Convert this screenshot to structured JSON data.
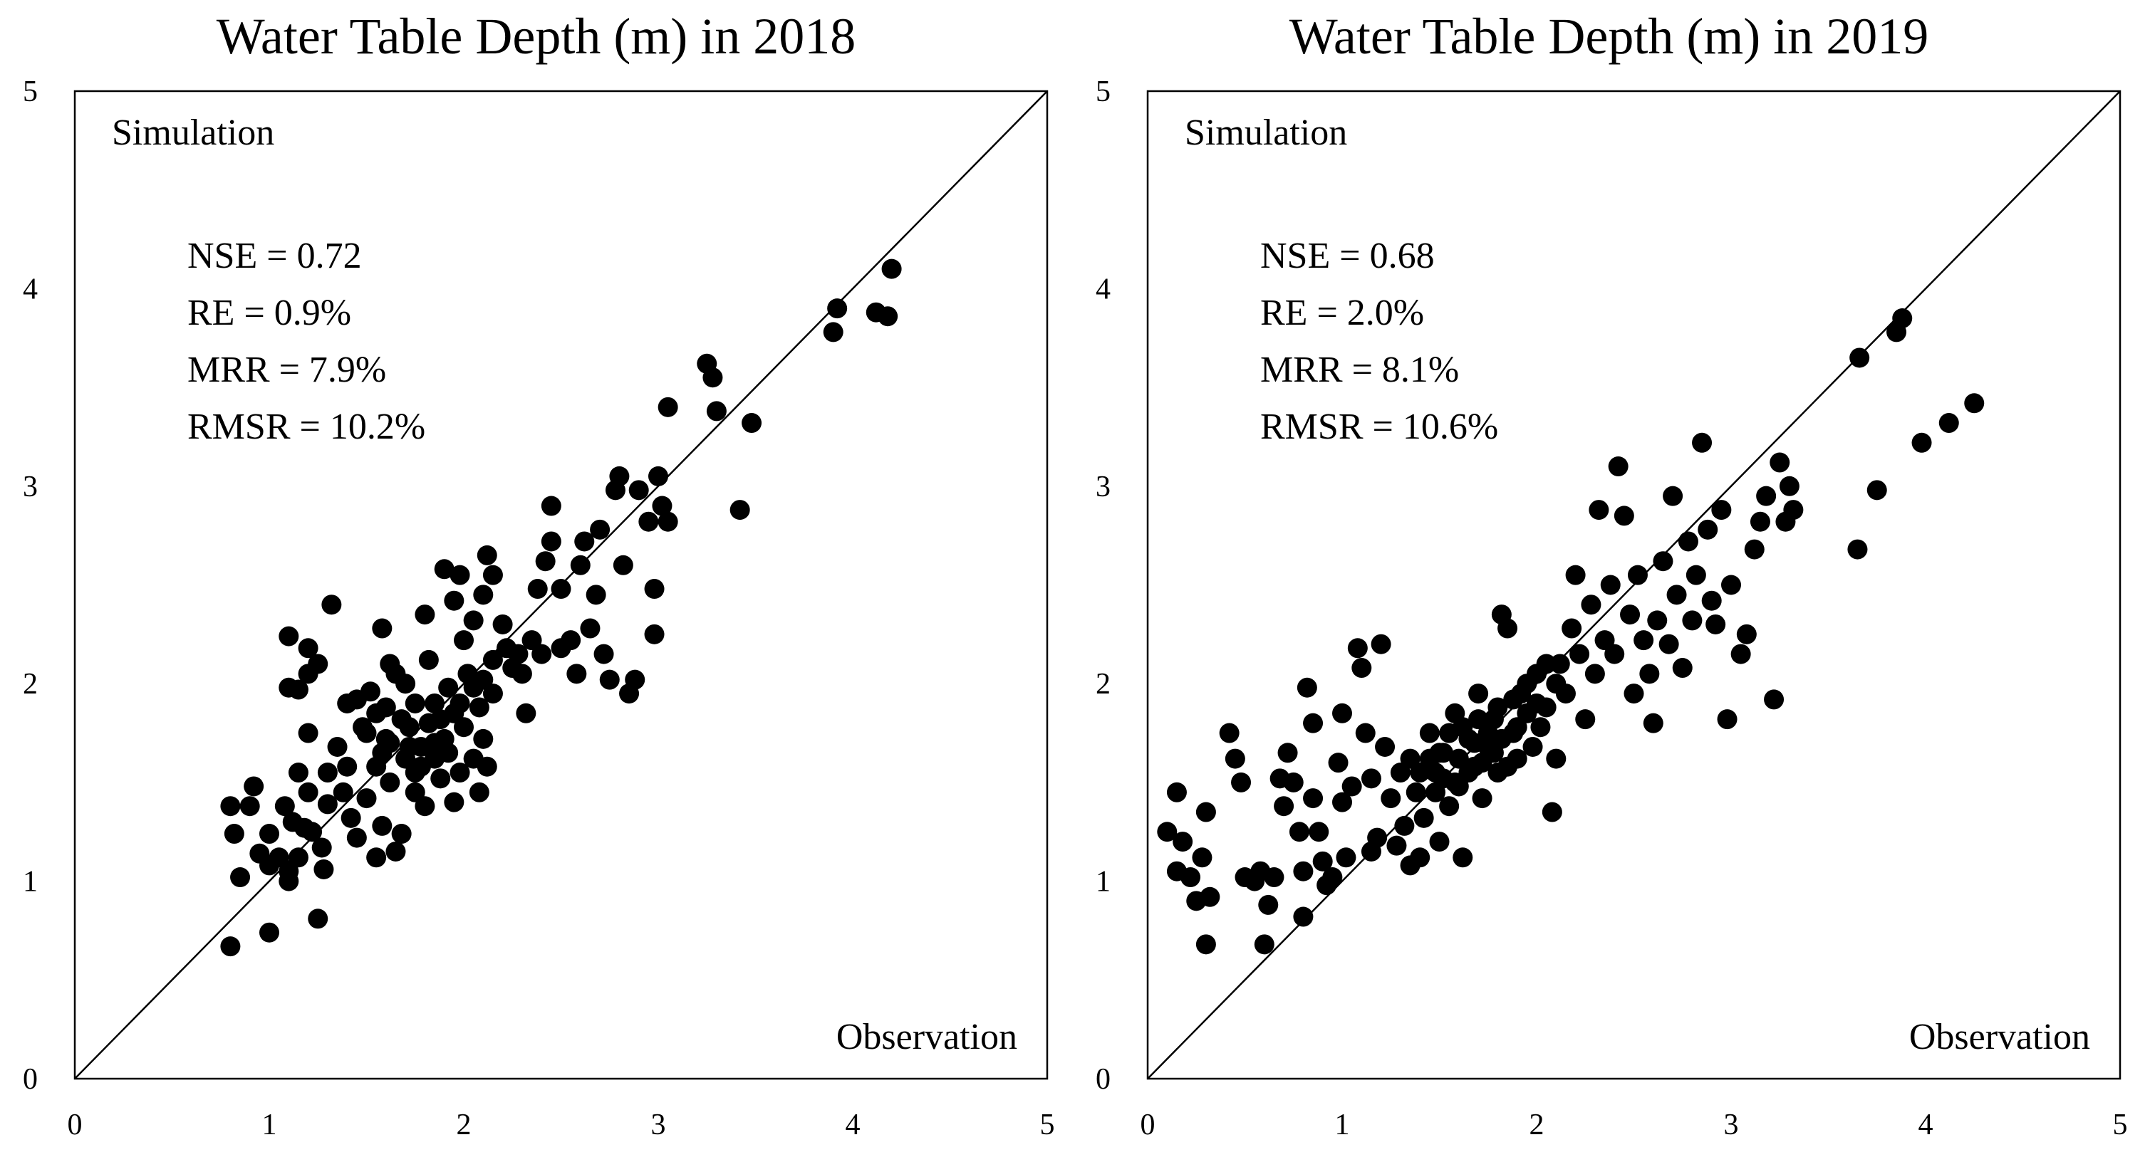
{
  "chart_data": [
    {
      "type": "scatter",
      "title": "Water Table Depth (m) in 2018",
      "xlabel": "Observation",
      "ylabel": "Simulation",
      "xlim": [
        0,
        5
      ],
      "ylim": [
        0,
        5
      ],
      "xticks": [
        "0",
        "1",
        "2",
        "3",
        "4",
        "5"
      ],
      "yticks": [
        "0",
        "1",
        "2",
        "3",
        "4",
        "5"
      ],
      "reference_line": "1:1",
      "stats": [
        "NSE = 0.72",
        "RE = 0.9%",
        "MRR = 7.9%",
        "RMSR = 10.2%"
      ],
      "points": [
        [
          0.8,
          0.67
        ],
        [
          1.0,
          0.74
        ],
        [
          1.25,
          0.81
        ],
        [
          0.8,
          1.38
        ],
        [
          0.82,
          1.24
        ],
        [
          0.85,
          1.02
        ],
        [
          0.9,
          1.38
        ],
        [
          0.92,
          1.48
        ],
        [
          0.95,
          1.14
        ],
        [
          1.0,
          1.24
        ],
        [
          1.0,
          1.08
        ],
        [
          1.05,
          1.12
        ],
        [
          1.08,
          1.38
        ],
        [
          1.1,
          1.0
        ],
        [
          1.1,
          1.05
        ],
        [
          1.12,
          1.3
        ],
        [
          1.15,
          1.12
        ],
        [
          1.15,
          1.55
        ],
        [
          1.18,
          1.27
        ],
        [
          1.2,
          1.45
        ],
        [
          1.2,
          1.75
        ],
        [
          1.22,
          1.25
        ],
        [
          1.27,
          1.17
        ],
        [
          1.28,
          1.06
        ],
        [
          1.3,
          1.39
        ],
        [
          1.3,
          1.55
        ],
        [
          1.1,
          1.98
        ],
        [
          1.15,
          1.97
        ],
        [
          1.2,
          2.05
        ],
        [
          1.1,
          2.24
        ],
        [
          1.2,
          2.18
        ],
        [
          1.25,
          2.1
        ],
        [
          1.32,
          2.4
        ],
        [
          1.35,
          1.68
        ],
        [
          1.38,
          1.45
        ],
        [
          1.4,
          1.58
        ],
        [
          1.42,
          1.32
        ],
        [
          1.45,
          1.22
        ],
        [
          1.45,
          1.92
        ],
        [
          1.48,
          1.78
        ],
        [
          1.5,
          1.42
        ],
        [
          1.52,
          1.96
        ],
        [
          1.55,
          1.12
        ],
        [
          1.55,
          1.58
        ],
        [
          1.58,
          1.28
        ],
        [
          1.6,
          1.72
        ],
        [
          1.6,
          1.88
        ],
        [
          1.62,
          1.5
        ],
        [
          1.65,
          1.15
        ],
        [
          1.65,
          2.05
        ],
        [
          1.68,
          1.24
        ],
        [
          1.7,
          1.62
        ],
        [
          1.72,
          1.78
        ],
        [
          1.75,
          1.45
        ],
        [
          1.75,
          1.55
        ],
        [
          1.78,
          1.68
        ],
        [
          1.8,
          1.38
        ],
        [
          1.82,
          1.8
        ],
        [
          1.85,
          1.9
        ],
        [
          1.85,
          1.62
        ],
        [
          1.88,
          1.52
        ],
        [
          1.9,
          1.72
        ],
        [
          1.92,
          1.98
        ],
        [
          1.95,
          1.4
        ],
        [
          1.95,
          1.85
        ],
        [
          1.98,
          1.55
        ],
        [
          2.0,
          1.78
        ],
        [
          2.02,
          2.05
        ],
        [
          2.05,
          1.62
        ],
        [
          2.08,
          1.45
        ],
        [
          2.1,
          1.72
        ],
        [
          2.12,
          1.58
        ],
        [
          2.15,
          1.95
        ],
        [
          2.15,
          2.12
        ],
        [
          1.58,
          2.28
        ],
        [
          1.62,
          2.1
        ],
        [
          1.7,
          2.0
        ],
        [
          1.8,
          2.35
        ],
        [
          1.82,
          2.12
        ],
        [
          1.9,
          2.58
        ],
        [
          1.95,
          2.42
        ],
        [
          1.98,
          2.55
        ],
        [
          2.0,
          2.22
        ],
        [
          2.05,
          2.32
        ],
        [
          2.1,
          2.45
        ],
        [
          2.12,
          2.65
        ],
        [
          2.15,
          2.55
        ],
        [
          2.2,
          2.3
        ],
        [
          2.22,
          2.18
        ],
        [
          2.25,
          2.08
        ],
        [
          2.28,
          2.15
        ],
        [
          2.3,
          2.05
        ],
        [
          2.32,
          1.85
        ],
        [
          2.35,
          2.22
        ],
        [
          2.38,
          2.48
        ],
        [
          2.4,
          2.15
        ],
        [
          2.42,
          2.62
        ],
        [
          2.45,
          2.72
        ],
        [
          2.45,
          2.9
        ],
        [
          2.5,
          2.18
        ],
        [
          2.5,
          2.48
        ],
        [
          2.55,
          2.22
        ],
        [
          2.58,
          2.05
        ],
        [
          2.6,
          2.6
        ],
        [
          2.62,
          2.72
        ],
        [
          2.65,
          2.28
        ],
        [
          2.68,
          2.45
        ],
        [
          2.7,
          2.78
        ],
        [
          2.72,
          2.15
        ],
        [
          2.75,
          2.02
        ],
        [
          2.78,
          2.98
        ],
        [
          2.8,
          3.05
        ],
        [
          2.82,
          2.6
        ],
        [
          2.85,
          1.95
        ],
        [
          2.88,
          2.02
        ],
        [
          2.9,
          2.98
        ],
        [
          2.95,
          2.82
        ],
        [
          2.98,
          2.25
        ],
        [
          2.98,
          2.48
        ],
        [
          3.0,
          3.05
        ],
        [
          3.02,
          2.9
        ],
        [
          3.05,
          2.82
        ],
        [
          3.05,
          3.4
        ],
        [
          3.25,
          3.62
        ],
        [
          3.28,
          3.55
        ],
        [
          3.3,
          3.38
        ],
        [
          3.42,
          2.88
        ],
        [
          3.48,
          3.32
        ],
        [
          3.9,
          3.78
        ],
        [
          3.92,
          3.9
        ],
        [
          4.12,
          3.88
        ],
        [
          4.18,
          3.86
        ],
        [
          4.2,
          4.1
        ],
        [
          1.4,
          1.9
        ],
        [
          1.5,
          1.75
        ],
        [
          1.55,
          1.85
        ],
        [
          1.58,
          1.65
        ],
        [
          1.62,
          1.7
        ],
        [
          1.68,
          1.82
        ],
        [
          1.72,
          1.68
        ],
        [
          1.75,
          1.9
        ],
        [
          1.78,
          1.58
        ],
        [
          1.85,
          1.7
        ],
        [
          1.88,
          1.82
        ],
        [
          1.92,
          1.65
        ],
        [
          1.98,
          1.9
        ],
        [
          2.05,
          1.98
        ],
        [
          2.08,
          1.88
        ],
        [
          2.1,
          2.02
        ]
      ]
    },
    {
      "type": "scatter",
      "title": "Water Table Depth (m) in 2019",
      "xlabel": "Observation",
      "ylabel": "Simulation",
      "xlim": [
        0,
        5
      ],
      "ylim": [
        0,
        5
      ],
      "xticks": [
        "0",
        "1",
        "2",
        "3",
        "4",
        "5"
      ],
      "yticks": [
        "0",
        "1",
        "2",
        "3",
        "4",
        "5"
      ],
      "reference_line": "1:1",
      "stats": [
        "NSE = 0.68",
        "RE = 2.0%",
        "MRR = 8.1%",
        "RMSR = 10.6%"
      ],
      "points": [
        [
          0.1,
          1.25
        ],
        [
          0.15,
          1.45
        ],
        [
          0.15,
          1.05
        ],
        [
          0.18,
          1.2
        ],
        [
          0.22,
          1.02
        ],
        [
          0.25,
          0.9
        ],
        [
          0.28,
          1.12
        ],
        [
          0.3,
          0.68
        ],
        [
          0.3,
          1.35
        ],
        [
          0.32,
          0.92
        ],
        [
          0.42,
          1.75
        ],
        [
          0.45,
          1.62
        ],
        [
          0.48,
          1.5
        ],
        [
          0.5,
          1.02
        ],
        [
          0.55,
          1.0
        ],
        [
          0.58,
          1.05
        ],
        [
          0.6,
          0.68
        ],
        [
          0.62,
          0.88
        ],
        [
          0.65,
          1.02
        ],
        [
          0.68,
          1.52
        ],
        [
          0.7,
          1.38
        ],
        [
          0.72,
          1.65
        ],
        [
          0.75,
          1.5
        ],
        [
          0.78,
          1.25
        ],
        [
          0.8,
          0.82
        ],
        [
          0.8,
          1.05
        ],
        [
          0.82,
          1.98
        ],
        [
          0.85,
          1.8
        ],
        [
          0.85,
          1.42
        ],
        [
          0.88,
          1.25
        ],
        [
          0.9,
          1.1
        ],
        [
          0.92,
          0.98
        ],
        [
          0.95,
          1.02
        ],
        [
          0.98,
          1.6
        ],
        [
          1.0,
          1.4
        ],
        [
          1.0,
          1.85
        ],
        [
          1.02,
          1.12
        ],
        [
          1.05,
          1.48
        ],
        [
          1.08,
          2.18
        ],
        [
          1.1,
          2.08
        ],
        [
          1.12,
          1.75
        ],
        [
          1.15,
          1.52
        ],
        [
          1.18,
          1.22
        ],
        [
          1.2,
          2.2
        ],
        [
          1.22,
          1.68
        ],
        [
          1.25,
          1.42
        ],
        [
          1.28,
          1.18
        ],
        [
          1.3,
          1.55
        ],
        [
          1.32,
          1.28
        ],
        [
          1.35,
          1.62
        ],
        [
          1.38,
          1.45
        ],
        [
          1.4,
          1.12
        ],
        [
          1.42,
          1.32
        ],
        [
          1.45,
          1.75
        ],
        [
          1.48,
          1.55
        ],
        [
          1.5,
          1.2
        ],
        [
          1.52,
          1.65
        ],
        [
          1.55,
          1.38
        ],
        [
          1.58,
          1.85
        ],
        [
          1.6,
          1.48
        ],
        [
          1.62,
          1.12
        ],
        [
          1.65,
          1.72
        ],
        [
          1.68,
          1.58
        ],
        [
          1.7,
          1.95
        ],
        [
          1.72,
          1.42
        ],
        [
          1.75,
          1.68
        ],
        [
          1.78,
          1.82
        ],
        [
          1.8,
          1.55
        ],
        [
          1.82,
          2.35
        ],
        [
          1.85,
          2.28
        ],
        [
          1.88,
          1.75
        ],
        [
          1.9,
          1.62
        ],
        [
          1.92,
          1.95
        ],
        [
          1.95,
          1.85
        ],
        [
          1.98,
          1.68
        ],
        [
          2.0,
          2.05
        ],
        [
          2.02,
          1.78
        ],
        [
          2.05,
          1.88
        ],
        [
          2.08,
          1.35
        ],
        [
          2.1,
          1.62
        ],
        [
          2.12,
          2.1
        ],
        [
          2.15,
          1.95
        ],
        [
          2.18,
          2.28
        ],
        [
          2.2,
          2.55
        ],
        [
          2.22,
          2.15
        ],
        [
          2.25,
          1.82
        ],
        [
          2.28,
          2.4
        ],
        [
          2.3,
          2.05
        ],
        [
          2.32,
          2.88
        ],
        [
          2.35,
          2.22
        ],
        [
          2.38,
          2.5
        ],
        [
          2.4,
          2.15
        ],
        [
          2.42,
          3.1
        ],
        [
          2.45,
          2.85
        ],
        [
          2.48,
          2.35
        ],
        [
          2.5,
          1.95
        ],
        [
          2.52,
          2.55
        ],
        [
          2.55,
          2.22
        ],
        [
          2.58,
          2.05
        ],
        [
          2.6,
          1.8
        ],
        [
          2.62,
          2.32
        ],
        [
          2.65,
          2.62
        ],
        [
          2.68,
          2.2
        ],
        [
          2.7,
          2.95
        ],
        [
          2.72,
          2.45
        ],
        [
          2.75,
          2.08
        ],
        [
          2.78,
          2.72
        ],
        [
          2.8,
          2.32
        ],
        [
          2.82,
          2.55
        ],
        [
          2.85,
          3.22
        ],
        [
          2.88,
          2.78
        ],
        [
          2.9,
          2.42
        ],
        [
          2.92,
          2.3
        ],
        [
          2.95,
          2.88
        ],
        [
          2.98,
          1.82
        ],
        [
          3.0,
          2.5
        ],
        [
          3.05,
          2.15
        ],
        [
          3.08,
          2.25
        ],
        [
          3.12,
          2.68
        ],
        [
          3.15,
          2.82
        ],
        [
          3.18,
          2.95
        ],
        [
          3.22,
          1.92
        ],
        [
          3.25,
          3.12
        ],
        [
          3.28,
          2.82
        ],
        [
          3.3,
          3.0
        ],
        [
          3.32,
          2.88
        ],
        [
          3.65,
          2.68
        ],
        [
          3.66,
          3.65
        ],
        [
          3.75,
          2.98
        ],
        [
          3.85,
          3.78
        ],
        [
          3.88,
          3.85
        ],
        [
          3.98,
          3.22
        ],
        [
          4.12,
          3.32
        ],
        [
          4.25,
          3.42
        ],
        [
          1.5,
          1.65
        ],
        [
          1.55,
          1.75
        ],
        [
          1.6,
          1.62
        ],
        [
          1.62,
          1.78
        ],
        [
          1.65,
          1.55
        ],
        [
          1.68,
          1.7
        ],
        [
          1.7,
          1.82
        ],
        [
          1.72,
          1.6
        ],
        [
          1.75,
          1.75
        ],
        [
          1.78,
          1.65
        ],
        [
          1.8,
          1.88
        ],
        [
          1.82,
          1.72
        ],
        [
          1.85,
          1.58
        ],
        [
          1.88,
          1.92
        ],
        [
          1.9,
          1.78
        ],
        [
          1.95,
          2.0
        ],
        [
          2.0,
          1.9
        ],
        [
          2.05,
          2.1
        ],
        [
          2.1,
          2.0
        ],
        [
          1.4,
          1.55
        ],
        [
          1.45,
          1.62
        ],
        [
          1.48,
          1.45
        ],
        [
          1.52,
          1.52
        ],
        [
          1.58,
          1.5
        ],
        [
          1.35,
          1.08
        ],
        [
          1.15,
          1.15
        ]
      ]
    }
  ]
}
